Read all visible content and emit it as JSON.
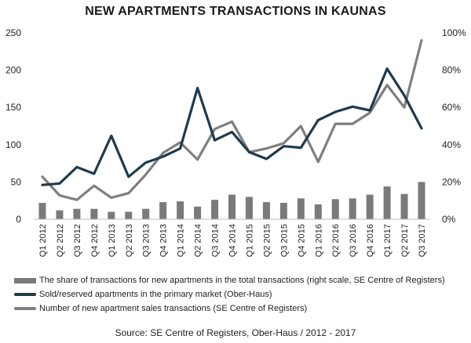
{
  "chart_data": {
    "type": "bar",
    "title": "NEW APARTMENTS TRANSACTIONS IN KAUNAS",
    "categories": [
      "Q1 2012",
      "Q2 2012",
      "Q3 2012",
      "Q4 2012",
      "Q1 2013",
      "Q2 2013",
      "Q3 2013",
      "Q4 2013",
      "Q1 2014",
      "Q2 2014",
      "Q3 2014",
      "Q4 2014",
      "Q1 2015",
      "Q2 2015",
      "Q3 2015",
      "Q4 2015",
      "Q1 2016",
      "Q2 2016",
      "Q3 2016",
      "Q4 2016",
      "Q1 2017",
      "Q2 2017",
      "Q3 2017"
    ],
    "left_axis": {
      "min": 0,
      "max": 250,
      "ticks": [
        "0",
        "50",
        "100",
        "150",
        "200",
        "250"
      ]
    },
    "right_axis": {
      "min": 0,
      "max": 100,
      "ticks": [
        "0%",
        "20%",
        "40%",
        "60%",
        "80%",
        "100%"
      ]
    },
    "grid": false,
    "legend_position": "bottom",
    "series": [
      {
        "name": "The share of transactions for new apartments in the total transactions (right scale, SE Centre of Registers)",
        "kind": "bar",
        "axis": "right",
        "color": "#7a7a7a",
        "values": [
          8.8,
          4.8,
          5.6,
          5.6,
          4.0,
          4.0,
          5.6,
          9.2,
          9.6,
          6.8,
          10.4,
          13.2,
          12.0,
          9.2,
          8.8,
          11.2,
          8.0,
          10.8,
          11.2,
          13.2,
          17.6,
          13.6,
          20.0
        ]
      },
      {
        "name": "Sold/reserved apartments in the primary market (Ober-Haus)",
        "kind": "line",
        "axis": "left",
        "color": "#1f3a4d",
        "values": [
          46,
          48,
          70,
          61,
          112,
          57,
          76,
          84,
          95,
          176,
          106,
          117,
          90,
          81,
          98,
          96,
          133,
          144,
          151,
          146,
          202,
          166,
          122
        ]
      },
      {
        "name": "Number of new apartment sales transactions (SE Centre of Registers)",
        "kind": "line",
        "axis": "left",
        "color": "#7f7f7f",
        "values": [
          57,
          32,
          26,
          45,
          29,
          35,
          60,
          89,
          103,
          80,
          121,
          131,
          90,
          95,
          102,
          125,
          77,
          128,
          128,
          143,
          180,
          150,
          240
        ]
      }
    ]
  },
  "source": "Source: SE Centre of Registers, Ober-Haus  / 2012 - 2017"
}
